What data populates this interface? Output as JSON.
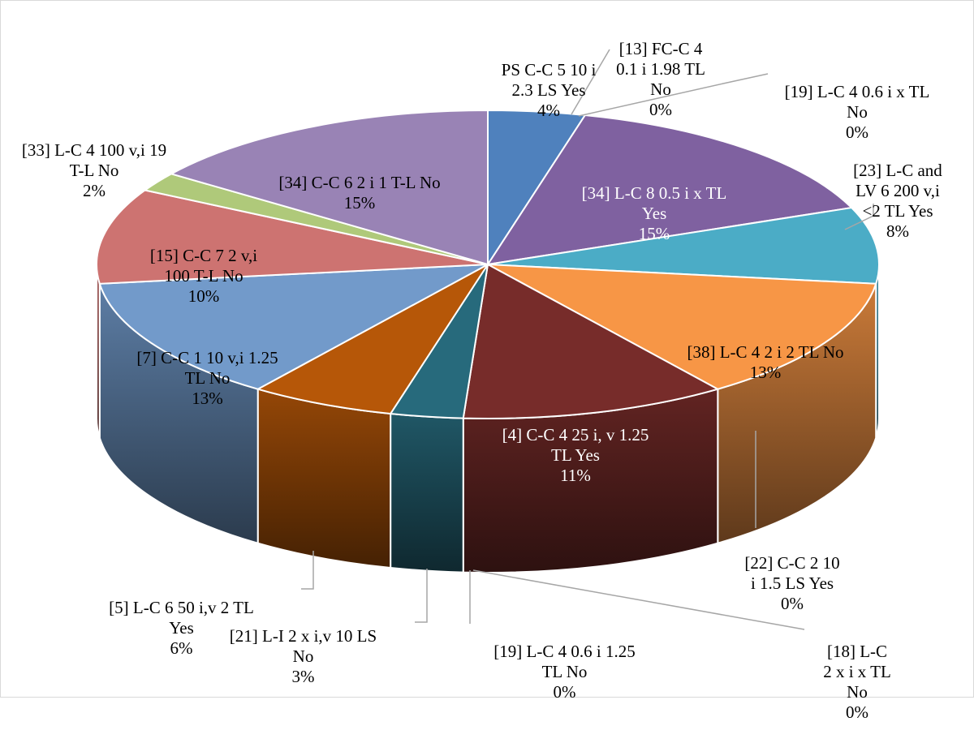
{
  "chart_data": {
    "type": "pie",
    "style": "3d",
    "title": "",
    "slices": [
      {
        "label": "PS C-C 5 10 i 2.3 LS Yes",
        "value": 4,
        "pct": "4%",
        "color": "#4F81BD"
      },
      {
        "label": "[13] FC-C 4 0.1 i 1.98 TL No",
        "value": 0,
        "pct": "0%",
        "color": "#C0504D"
      },
      {
        "label": "[19] L-C 4 0.6 i x TL No",
        "value": 0,
        "pct": "0%",
        "color": "#9BBB59"
      },
      {
        "label": "[34] L-C 8 0.5 i x TL Yes",
        "value": 15,
        "pct": "15%",
        "color": "#7F61A0"
      },
      {
        "label": "[23] L-C and LV 6 200 v,i <2 TL Yes",
        "value": 8,
        "pct": "8%",
        "color": "#4BACC6"
      },
      {
        "label": "[38] L-C 4 2 i 2 TL No",
        "value": 13,
        "pct": "13%",
        "color": "#F79646"
      },
      {
        "label": "[22] C-C 2 10 i 1.5 LS Yes",
        "value": 0,
        "pct": "0%",
        "color": "#4F81BD"
      },
      {
        "label": "[4] C-C 4 25 i, v 1.25 TL Yes",
        "value": 11,
        "pct": "11%",
        "color": "#772C2A"
      },
      {
        "label": "[18] L-C 2 x i x TL No",
        "value": 0,
        "pct": "0%",
        "color": "#5F7530"
      },
      {
        "label": "[19] L-C 4 0.6 i 1.25 TL No",
        "value": 0,
        "pct": "0%",
        "color": "#4D3B62"
      },
      {
        "label": "[21] L-I 2 x i,v 10 LS No",
        "value": 3,
        "pct": "3%",
        "color": "#276A7C"
      },
      {
        "label": "[5] L-C 6 50 i,v 2 TL Yes",
        "value": 6,
        "pct": "6%",
        "color": "#B65708"
      },
      {
        "label": "[7] C-C 1 10 v,i 1.25 TL No",
        "value": 13,
        "pct": "13%",
        "color": "#729ACA"
      },
      {
        "label": "[15] C-C 7 2 v,i 100 T-L No",
        "value": 10,
        "pct": "10%",
        "color": "#CD7371"
      },
      {
        "label": "[33] L-C 4 100 v,i 19 T-L No",
        "value": 2,
        "pct": "2%",
        "color": "#AFC97A"
      },
      {
        "label": "[34] C-C 6 2 i 1 T-L No",
        "value": 15,
        "pct": "15%",
        "color": "#9983B5"
      }
    ],
    "labels_text": [
      {
        "text": "PS C-C 5 10 i\n2.3 LS Yes",
        "pct": "4%"
      },
      {
        "text": "[13] FC-C 4\n0.1 i 1.98 TL\nNo",
        "pct": "0%"
      },
      {
        "text": "[19] L-C 4 0.6 i x TL\nNo",
        "pct": "0%"
      },
      {
        "text": "[34] L-C 8 0.5 i x TL\nYes",
        "pct": "15%"
      },
      {
        "text": "[23] L-C and\nLV 6 200 v,i\n<2 TL Yes",
        "pct": "8%"
      },
      {
        "text": "[38] L-C 4 2 i 2 TL No",
        "pct": "13%"
      },
      {
        "text": "[22] C-C 2 10\ni 1.5 LS Yes",
        "pct": "0%"
      },
      {
        "text": "[4] C-C 4 25 i, v 1.25\nTL Yes",
        "pct": "11%"
      },
      {
        "text": "[18] L-C\n2 x i x TL\nNo",
        "pct": "0%"
      },
      {
        "text": "[19] L-C 4 0.6 i 1.25\nTL No",
        "pct": "0%"
      },
      {
        "text": "[21] L-I 2 x i,v 10 LS\nNo",
        "pct": "3%"
      },
      {
        "text": "[5] L-C 6 50 i,v 2 TL\nYes",
        "pct": "6%"
      },
      {
        "text": "[7] C-C 1 10 v,i 1.25\nTL No",
        "pct": "13%"
      },
      {
        "text": "[15] C-C 7 2 v,i\n100 T-L No",
        "pct": "10%"
      },
      {
        "text": "[33] L-C 4 100 v,i 19\nT-L No",
        "pct": "2%"
      },
      {
        "text": "[34] C-C 6 2 i 1 T-L No",
        "pct": "15%"
      }
    ]
  }
}
